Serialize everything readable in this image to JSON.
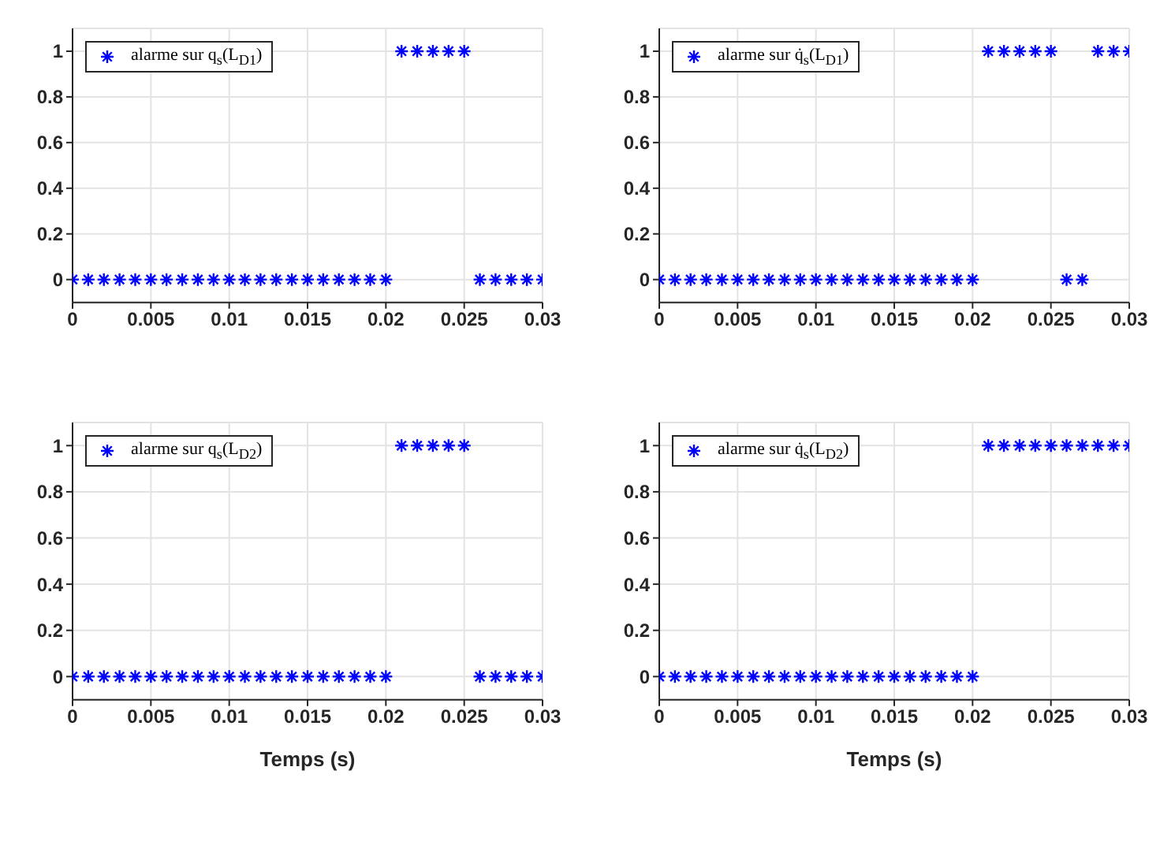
{
  "chart_data": [
    {
      "type": "scatter",
      "xlim": [
        0,
        0.03
      ],
      "ylim": [
        -0.1,
        1.1
      ],
      "xticks": [
        0,
        0.005,
        0.01,
        0.015,
        0.02,
        0.025,
        0.03
      ],
      "yticks": [
        0,
        0.2,
        0.4,
        0.6,
        0.8,
        1
      ],
      "grid": true,
      "legend": "top left",
      "marker": "cross",
      "x": [
        0,
        0.001,
        0.002,
        0.003,
        0.004,
        0.005,
        0.006,
        0.007,
        0.008,
        0.009,
        0.01,
        0.011,
        0.012,
        0.013,
        0.014,
        0.015,
        0.016,
        0.017,
        0.018,
        0.019,
        0.02,
        0.021,
        0.022,
        0.023,
        0.024,
        0.025,
        0.026,
        0.027,
        0.028,
        0.029,
        0.03
      ],
      "series": [
        {
          "name": "alarme sur q$_{s}$(L$_{D1}$)",
          "color": "#0000ff",
          "values": [
            0,
            0,
            0,
            0,
            0,
            0,
            0,
            0,
            0,
            0,
            0,
            0,
            0,
            0,
            0,
            0,
            0,
            0,
            0,
            0,
            0,
            1,
            1,
            1,
            1,
            1,
            0,
            0,
            0,
            0,
            0
          ]
        }
      ]
    },
    {
      "type": "scatter",
      "xlim": [
        0,
        0.03
      ],
      "ylim": [
        -0.1,
        1.1
      ],
      "xticks": [
        0,
        0.005,
        0.01,
        0.015,
        0.02,
        0.025,
        0.03
      ],
      "yticks": [
        0,
        0.2,
        0.4,
        0.6,
        0.8,
        1
      ],
      "grid": true,
      "legend": "top left",
      "marker": "cross",
      "x": [
        0,
        0.001,
        0.002,
        0.003,
        0.004,
        0.005,
        0.006,
        0.007,
        0.008,
        0.009,
        0.01,
        0.011,
        0.012,
        0.013,
        0.014,
        0.015,
        0.016,
        0.017,
        0.018,
        0.019,
        0.02,
        0.021,
        0.022,
        0.023,
        0.024,
        0.025,
        0.026,
        0.027,
        0.028,
        0.029,
        0.03
      ],
      "series": [
        {
          "name": "alarme sur q̇$_{s}$(L$_{D1}$)",
          "color": "#0000ff",
          "values": [
            0,
            0,
            0,
            0,
            0,
            0,
            0,
            0,
            0,
            0,
            0,
            0,
            0,
            0,
            0,
            0,
            0,
            0,
            0,
            0,
            0,
            1,
            1,
            1,
            1,
            1,
            0,
            0,
            1,
            1,
            1
          ]
        }
      ]
    },
    {
      "type": "scatter",
      "xlabel": "Temps (s)",
      "xlim": [
        0,
        0.03
      ],
      "ylim": [
        -0.1,
        1.1
      ],
      "xticks": [
        0,
        0.005,
        0.01,
        0.015,
        0.02,
        0.025,
        0.03
      ],
      "yticks": [
        0,
        0.2,
        0.4,
        0.6,
        0.8,
        1
      ],
      "grid": true,
      "legend": "top left",
      "marker": "cross",
      "x": [
        0,
        0.001,
        0.002,
        0.003,
        0.004,
        0.005,
        0.006,
        0.007,
        0.008,
        0.009,
        0.01,
        0.011,
        0.012,
        0.013,
        0.014,
        0.015,
        0.016,
        0.017,
        0.018,
        0.019,
        0.02,
        0.021,
        0.022,
        0.023,
        0.024,
        0.025,
        0.026,
        0.027,
        0.028,
        0.029,
        0.03
      ],
      "series": [
        {
          "name": "alarme sur q$_{s}$(L$_{D2}$)",
          "color": "#0000ff",
          "values": [
            0,
            0,
            0,
            0,
            0,
            0,
            0,
            0,
            0,
            0,
            0,
            0,
            0,
            0,
            0,
            0,
            0,
            0,
            0,
            0,
            0,
            1,
            1,
            1,
            1,
            1,
            0,
            0,
            0,
            0,
            0
          ]
        }
      ]
    },
    {
      "type": "scatter",
      "xlabel": "Temps (s)",
      "xlim": [
        0,
        0.03
      ],
      "ylim": [
        -0.1,
        1.1
      ],
      "xticks": [
        0,
        0.005,
        0.01,
        0.015,
        0.02,
        0.025,
        0.03
      ],
      "yticks": [
        0,
        0.2,
        0.4,
        0.6,
        0.8,
        1
      ],
      "grid": true,
      "legend": "top left",
      "marker": "cross",
      "x": [
        0,
        0.001,
        0.002,
        0.003,
        0.004,
        0.005,
        0.006,
        0.007,
        0.008,
        0.009,
        0.01,
        0.011,
        0.012,
        0.013,
        0.014,
        0.015,
        0.016,
        0.017,
        0.018,
        0.019,
        0.02,
        0.021,
        0.022,
        0.023,
        0.024,
        0.025,
        0.026,
        0.027,
        0.028,
        0.029,
        0.03
      ],
      "series": [
        {
          "name": "alarme sur q̇$_{s}$(L$_{D2}$)",
          "color": "#0000ff",
          "values": [
            0,
            0,
            0,
            0,
            0,
            0,
            0,
            0,
            0,
            0,
            0,
            0,
            0,
            0,
            0,
            0,
            0,
            0,
            0,
            0,
            0,
            1,
            1,
            1,
            1,
            1,
            1,
            1,
            1,
            1,
            1
          ]
        }
      ]
    }
  ]
}
